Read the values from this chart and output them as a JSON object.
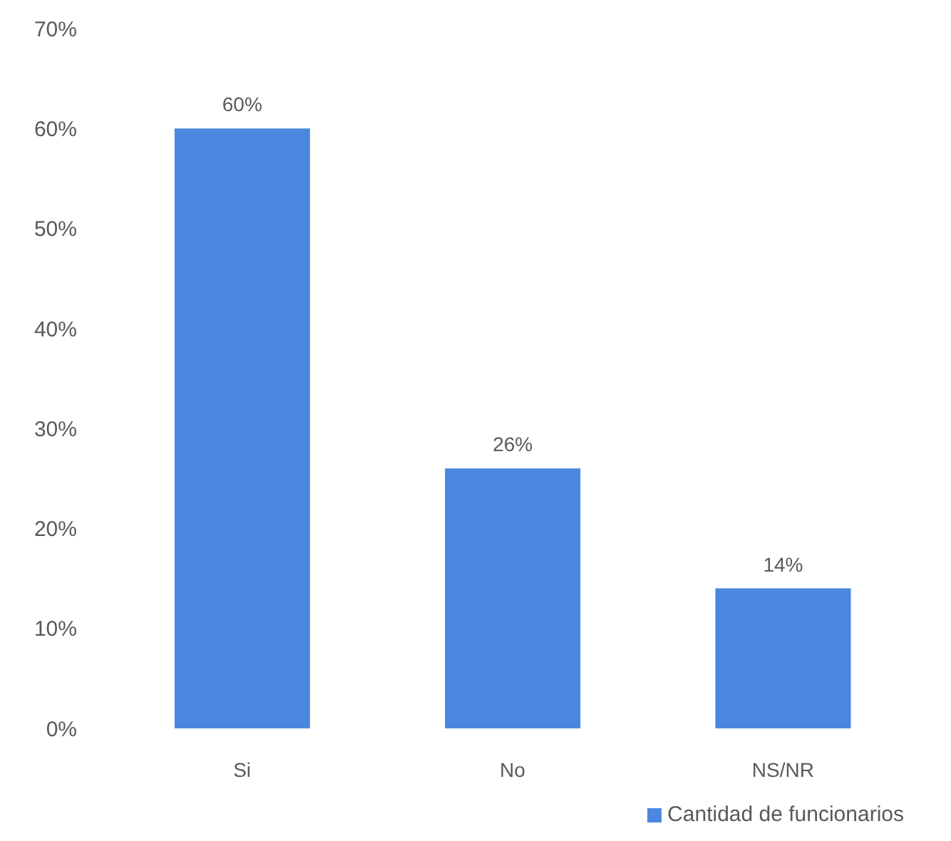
{
  "chart_data": {
    "type": "bar",
    "categories": [
      "Si",
      "No",
      "NS/NR"
    ],
    "series": [
      {
        "name": "Cantidad de funcionarios",
        "color": "#4a88e0",
        "values": [
          60,
          26,
          14
        ],
        "value_labels": [
          "60%",
          "26%",
          "14%"
        ]
      }
    ],
    "ylim": [
      0,
      70
    ],
    "yticks": [
      {
        "value": 0,
        "label": "0%"
      },
      {
        "value": 10,
        "label": "10%"
      },
      {
        "value": 20,
        "label": "20%"
      },
      {
        "value": 30,
        "label": "30%"
      },
      {
        "value": 40,
        "label": "40%"
      },
      {
        "value": 50,
        "label": "50%"
      },
      {
        "value": 60,
        "label": "60%"
      },
      {
        "value": 70,
        "label": "70%"
      }
    ],
    "legend": "bottom right"
  }
}
